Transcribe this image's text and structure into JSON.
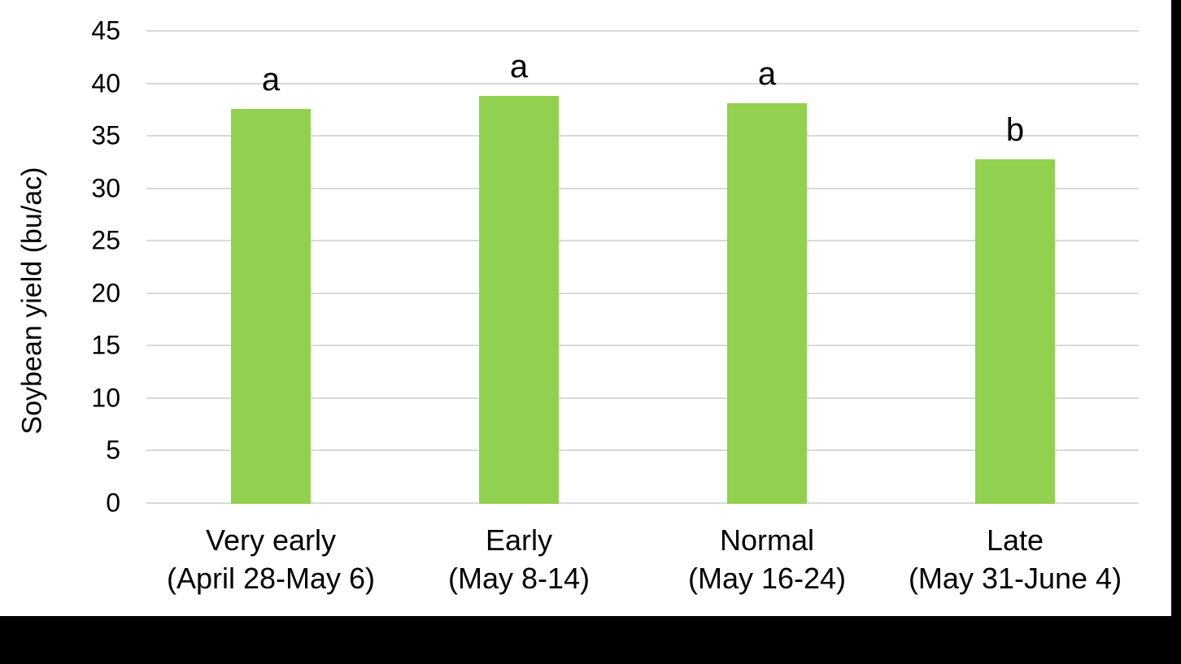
{
  "chart_data": {
    "type": "bar",
    "title": "",
    "xlabel": "",
    "ylabel": "Soybean yield (bu/ac)",
    "categories": [
      "Very early",
      "Early",
      "Normal",
      "Late"
    ],
    "category_sublabels": [
      "(April 28-May 6)",
      "(May 8-14)",
      "(May 16-24)",
      "(May 31-June 4)"
    ],
    "values": [
      37.5,
      38.7,
      38.0,
      32.7
    ],
    "bar_annotations": [
      "a",
      "a",
      "a",
      "b"
    ],
    "yticks": [
      0,
      5,
      10,
      15,
      20,
      25,
      30,
      35,
      40,
      45
    ],
    "ylim": [
      0,
      45
    ],
    "grid": true,
    "legend": false,
    "bar_color": "#92D050",
    "gridline_color": "#D9D9D9",
    "text_color": "#000000",
    "plot_background": "#FFFFFF",
    "page_background": "#000000"
  }
}
